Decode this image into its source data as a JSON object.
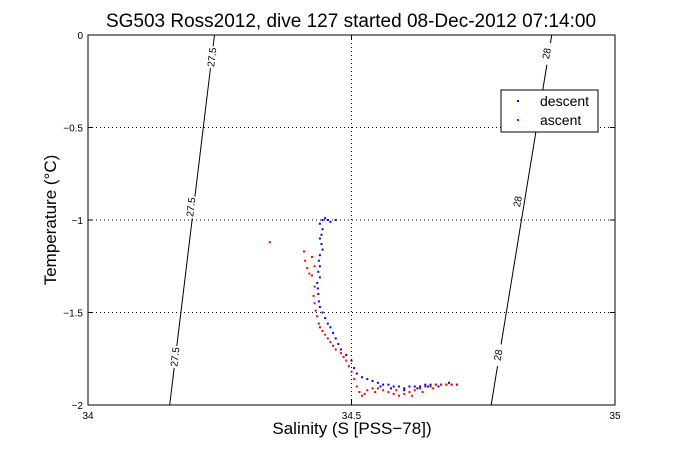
{
  "chart_data": {
    "type": "scatter",
    "title": "SG503 Ross2012, dive 127 started 08-Dec-2012 07:14:00",
    "xlabel": "Salinity (S [PSS−78])",
    "ylabel": "Temperature (°C)",
    "xlim": [
      34,
      35
    ],
    "ylim": [
      -2,
      0
    ],
    "x_ticks": [
      34,
      34.5,
      35
    ],
    "x_tick_labels": [
      "34",
      "34.5",
      "35"
    ],
    "y_ticks": [
      -2,
      -1.5,
      -1,
      -0.5,
      0
    ],
    "y_tick_labels": [
      "−2",
      "−1.5",
      "−1",
      "−0.5",
      "0"
    ],
    "grid": true,
    "legend": "top-right",
    "contours": [
      {
        "label": "27.5",
        "points": [
          [
            34.24,
            0
          ],
          [
            34.155,
            -2
          ]
        ],
        "label_positions": [
          [
            34.235,
            -0.12
          ],
          [
            34.195,
            -0.93
          ],
          [
            34.165,
            -1.74
          ]
        ]
      },
      {
        "label": "28",
        "points": [
          [
            34.88,
            0
          ],
          [
            34.765,
            -2
          ]
        ],
        "label_positions": [
          [
            34.87,
            -0.1
          ],
          [
            34.815,
            -0.9
          ],
          [
            34.778,
            -1.73
          ]
        ]
      }
    ],
    "series": [
      {
        "name": "descent",
        "color": "#0000ff",
        "points": [
          [
            34.445,
            -1.0
          ],
          [
            34.45,
            -0.99
          ],
          [
            34.455,
            -1.0
          ],
          [
            34.46,
            -1.01
          ],
          [
            34.47,
            -1.0
          ],
          [
            34.44,
            -1.02
          ],
          [
            34.445,
            -1.05
          ],
          [
            34.443,
            -1.08
          ],
          [
            34.44,
            -1.1
          ],
          [
            34.443,
            -1.13
          ],
          [
            34.445,
            -1.16
          ],
          [
            34.44,
            -1.19
          ],
          [
            34.438,
            -1.22
          ],
          [
            34.44,
            -1.25
          ],
          [
            34.437,
            -1.28
          ],
          [
            34.44,
            -1.31
          ],
          [
            34.435,
            -1.34
          ],
          [
            34.436,
            -1.37
          ],
          [
            34.437,
            -1.4
          ],
          [
            34.438,
            -1.44
          ],
          [
            34.44,
            -1.47
          ],
          [
            34.445,
            -1.5
          ],
          [
            34.45,
            -1.53
          ],
          [
            34.455,
            -1.56
          ],
          [
            34.46,
            -1.58
          ],
          [
            34.465,
            -1.61
          ],
          [
            34.47,
            -1.64
          ],
          [
            34.475,
            -1.67
          ],
          [
            34.48,
            -1.7
          ],
          [
            34.49,
            -1.73
          ],
          [
            34.5,
            -1.76
          ],
          [
            34.505,
            -1.8
          ],
          [
            34.51,
            -1.83
          ],
          [
            34.52,
            -1.85
          ],
          [
            34.53,
            -1.86
          ],
          [
            34.54,
            -1.87
          ],
          [
            34.55,
            -1.88
          ],
          [
            34.56,
            -1.89
          ],
          [
            34.57,
            -1.89
          ],
          [
            34.58,
            -1.9
          ],
          [
            34.59,
            -1.9
          ],
          [
            34.6,
            -1.91
          ],
          [
            34.61,
            -1.9
          ],
          [
            34.62,
            -1.9
          ],
          [
            34.63,
            -1.9
          ],
          [
            34.64,
            -1.89
          ],
          [
            34.65,
            -1.89
          ],
          [
            34.66,
            -1.89
          ],
          [
            34.67,
            -1.89
          ],
          [
            34.68,
            -1.89
          ],
          [
            34.69,
            -1.89
          ],
          [
            34.7,
            -1.89
          ],
          [
            34.555,
            -1.9
          ],
          [
            34.575,
            -1.91
          ],
          [
            34.6,
            -1.92
          ],
          [
            34.625,
            -1.91
          ],
          [
            34.645,
            -1.9
          ],
          [
            34.665,
            -1.9
          ],
          [
            34.685,
            -1.88
          ]
        ]
      },
      {
        "name": "ascent",
        "color": "#ff0000",
        "points": [
          [
            34.345,
            -1.12
          ],
          [
            34.41,
            -1.17
          ],
          [
            34.412,
            -1.22
          ],
          [
            34.416,
            -1.26
          ],
          [
            34.42,
            -1.29
          ],
          [
            34.425,
            -1.2
          ],
          [
            34.43,
            -1.25
          ],
          [
            34.425,
            -1.3
          ],
          [
            34.43,
            -1.36
          ],
          [
            34.428,
            -1.41
          ],
          [
            34.43,
            -1.45
          ],
          [
            34.432,
            -1.49
          ],
          [
            34.435,
            -1.52
          ],
          [
            34.438,
            -1.56
          ],
          [
            34.44,
            -1.58
          ],
          [
            34.445,
            -1.6
          ],
          [
            34.45,
            -1.62
          ],
          [
            34.455,
            -1.64
          ],
          [
            34.46,
            -1.66
          ],
          [
            34.465,
            -1.68
          ],
          [
            34.47,
            -1.7
          ],
          [
            34.48,
            -1.72
          ],
          [
            34.485,
            -1.74
          ],
          [
            34.49,
            -1.76
          ],
          [
            34.495,
            -1.79
          ],
          [
            34.5,
            -1.82
          ],
          [
            34.505,
            -1.86
          ],
          [
            34.51,
            -1.9
          ],
          [
            34.515,
            -1.93
          ],
          [
            34.52,
            -1.95
          ],
          [
            34.525,
            -1.94
          ],
          [
            34.53,
            -1.92
          ],
          [
            34.54,
            -1.91
          ],
          [
            34.55,
            -1.91
          ],
          [
            34.56,
            -1.92
          ],
          [
            34.57,
            -1.93
          ],
          [
            34.58,
            -1.94
          ],
          [
            34.59,
            -1.95
          ],
          [
            34.6,
            -1.94
          ],
          [
            34.61,
            -1.93
          ],
          [
            34.62,
            -1.92
          ],
          [
            34.63,
            -1.91
          ],
          [
            34.64,
            -1.9
          ],
          [
            34.65,
            -1.9
          ],
          [
            34.66,
            -1.89
          ],
          [
            34.67,
            -1.89
          ],
          [
            34.68,
            -1.89
          ],
          [
            34.69,
            -1.89
          ],
          [
            34.7,
            -1.89
          ],
          [
            34.545,
            -1.93
          ],
          [
            34.585,
            -1.92
          ],
          [
            34.615,
            -1.95
          ],
          [
            34.635,
            -1.93
          ],
          [
            34.655,
            -1.91
          ]
        ]
      }
    ]
  }
}
